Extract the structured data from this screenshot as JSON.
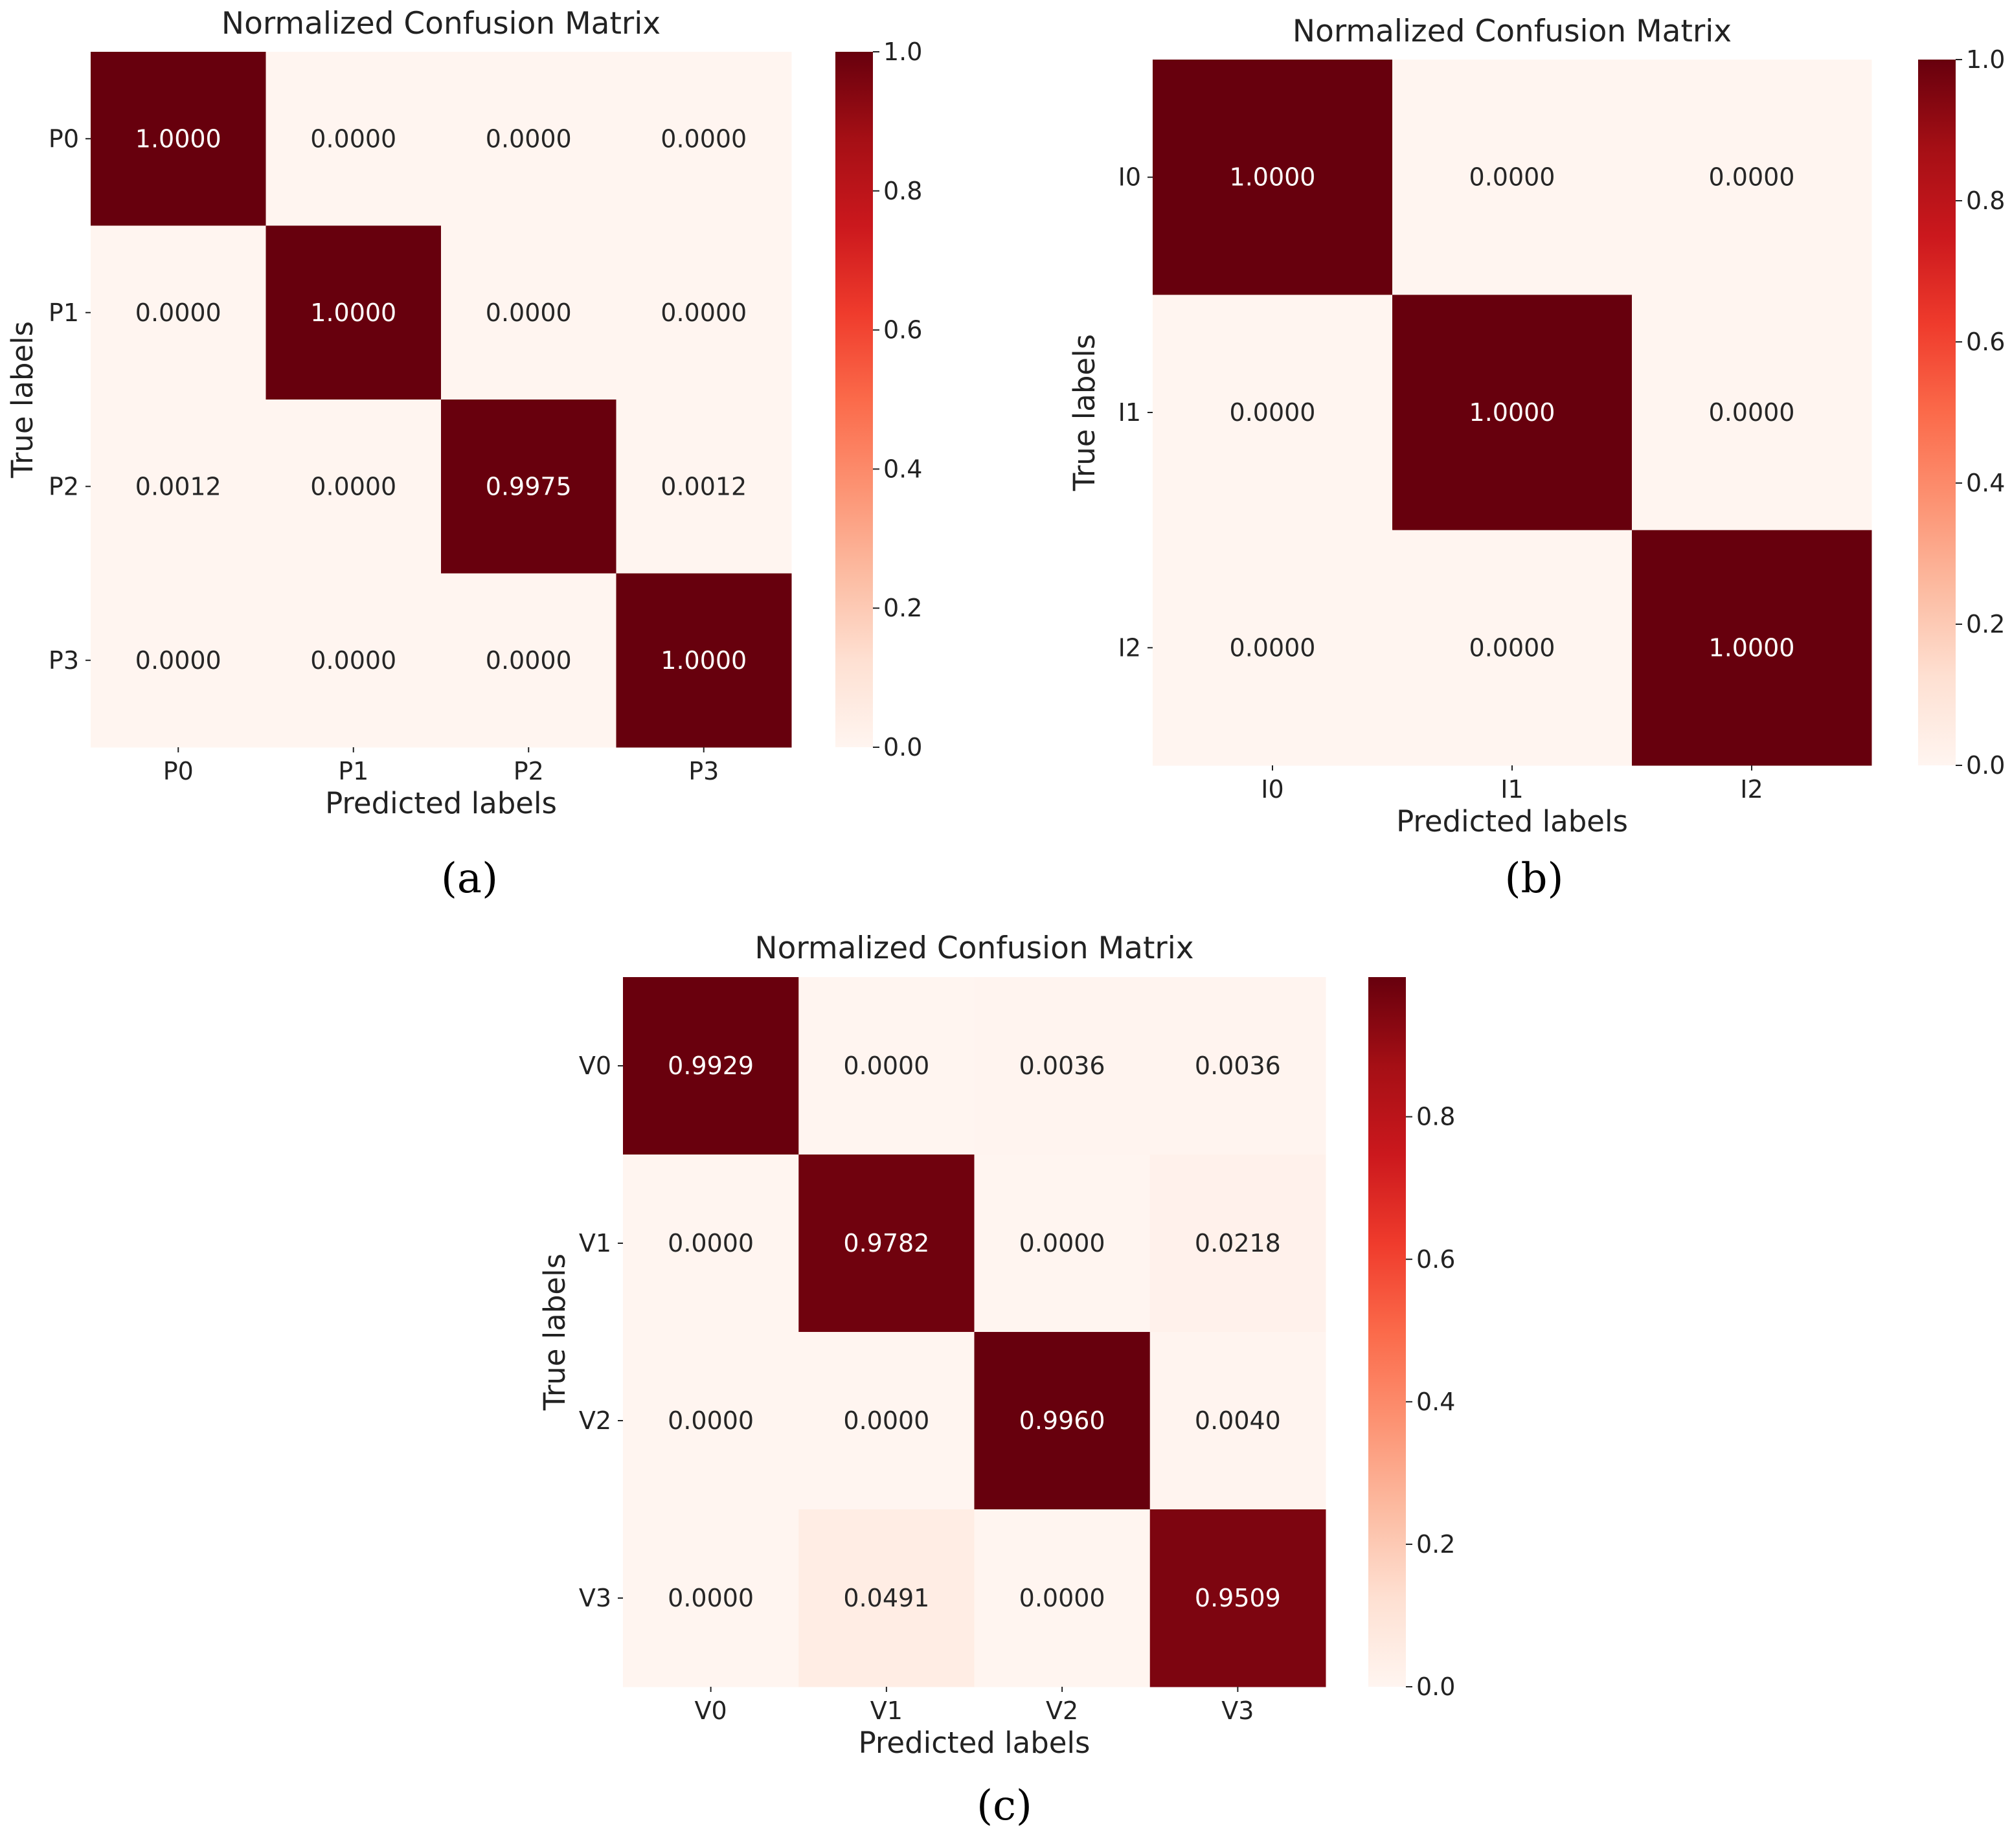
{
  "chart_data": [
    {
      "type": "heatmap",
      "panel": "a",
      "caption": "(a)",
      "title": "Normalized Confusion Matrix",
      "xlabel": "Predicted labels",
      "ylabel": "True labels",
      "x_categories": [
        "P0",
        "P1",
        "P2",
        "P3"
      ],
      "y_categories": [
        "P0",
        "P1",
        "P2",
        "P3"
      ],
      "values": [
        [
          1.0,
          0.0,
          0.0,
          0.0
        ],
        [
          0.0,
          1.0,
          0.0,
          0.0
        ],
        [
          0.0012,
          0.0,
          0.9975,
          0.0012
        ],
        [
          0.0,
          0.0,
          0.0,
          1.0
        ]
      ],
      "cell_labels": [
        [
          "1.0000",
          "0.0000",
          "0.0000",
          "0.0000"
        ],
        [
          "0.0000",
          "1.0000",
          "0.0000",
          "0.0000"
        ],
        [
          "0.0012",
          "0.0000",
          "0.9975",
          "0.0012"
        ],
        [
          "0.0000",
          "0.0000",
          "0.0000",
          "1.0000"
        ]
      ],
      "colormap": "Reds",
      "colorbar_range": [
        0.0,
        1.0
      ],
      "colorbar_ticks": [
        0.0,
        0.2,
        0.4,
        0.6,
        0.8,
        1.0
      ],
      "colorbar_tick_labels": [
        "0.0",
        "0.2",
        "0.4",
        "0.6",
        "0.8",
        "1.0"
      ]
    },
    {
      "type": "heatmap",
      "panel": "b",
      "caption": "(b)",
      "title": "Normalized Confusion Matrix",
      "xlabel": "Predicted labels",
      "ylabel": "True labels",
      "x_categories": [
        "I0",
        "I1",
        "I2"
      ],
      "y_categories": [
        "I0",
        "I1",
        "I2"
      ],
      "values": [
        [
          1.0,
          0.0,
          0.0
        ],
        [
          0.0,
          1.0,
          0.0
        ],
        [
          0.0,
          0.0,
          1.0
        ]
      ],
      "cell_labels": [
        [
          "1.0000",
          "0.0000",
          "0.0000"
        ],
        [
          "0.0000",
          "1.0000",
          "0.0000"
        ],
        [
          "0.0000",
          "0.0000",
          "1.0000"
        ]
      ],
      "colormap": "Reds",
      "colorbar_range": [
        0.0,
        1.0
      ],
      "colorbar_ticks": [
        0.0,
        0.2,
        0.4,
        0.6,
        0.8,
        1.0
      ],
      "colorbar_tick_labels": [
        "0.0",
        "0.2",
        "0.4",
        "0.6",
        "0.8",
        "1.0"
      ]
    },
    {
      "type": "heatmap",
      "panel": "c",
      "caption": "(c)",
      "title": "Normalized Confusion Matrix",
      "xlabel": "Predicted labels",
      "ylabel": "True labels",
      "x_categories": [
        "V0",
        "V1",
        "V2",
        "V3"
      ],
      "y_categories": [
        "V0",
        "V1",
        "V2",
        "V3"
      ],
      "values": [
        [
          0.9929,
          0.0,
          0.0036,
          0.0036
        ],
        [
          0.0,
          0.9782,
          0.0,
          0.0218
        ],
        [
          0.0,
          0.0,
          0.996,
          0.004
        ],
        [
          0.0,
          0.0491,
          0.0,
          0.9509
        ]
      ],
      "cell_labels": [
        [
          "0.9929",
          "0.0000",
          "0.0036",
          "0.0036"
        ],
        [
          "0.0000",
          "0.9782",
          "0.0000",
          "0.0218"
        ],
        [
          "0.0000",
          "0.0000",
          "0.9960",
          "0.0040"
        ],
        [
          "0.0000",
          "0.0491",
          "0.0000",
          "0.9509"
        ]
      ],
      "colormap": "Reds",
      "colorbar_range": [
        0.0,
        0.996
      ],
      "colorbar_ticks": [
        0.0,
        0.2,
        0.4,
        0.6,
        0.8
      ],
      "colorbar_tick_labels": [
        "0.0",
        "0.2",
        "0.4",
        "0.6",
        "0.8"
      ]
    }
  ]
}
